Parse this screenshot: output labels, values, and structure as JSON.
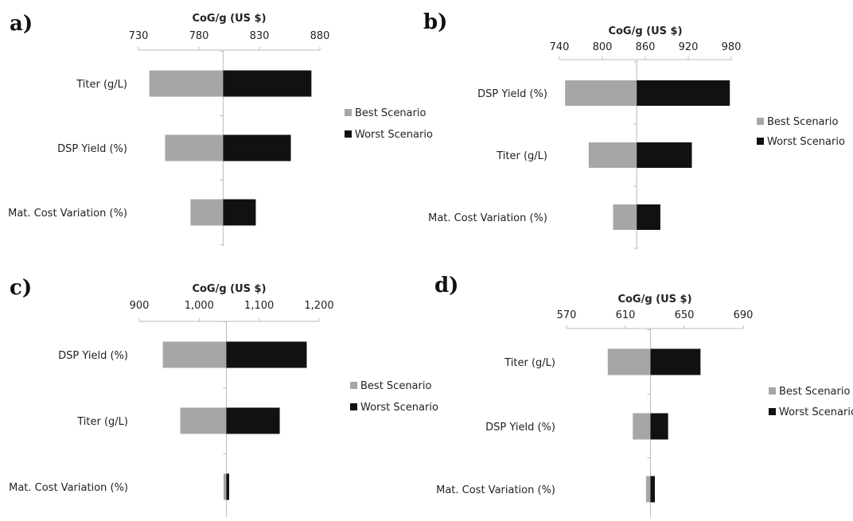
{
  "colors": {
    "best": "#a6a6a6",
    "worst": "#111111",
    "axis": "#bbbbbb"
  },
  "legend": {
    "best": "Best Scenario",
    "worst": "Worst Scenario"
  },
  "chart_data": [
    {
      "panel": "a)",
      "type": "bar",
      "orientation": "horizontal-tornado",
      "xlabel": "CoG/g (US $)",
      "ticks": [
        "730",
        "780",
        "830",
        "880"
      ],
      "xlim": [
        730,
        880
      ],
      "base": 800,
      "categories": [
        "Titer (g/L)",
        "DSP Yield (%)",
        "Mat. Cost Variation (%)"
      ],
      "series": [
        {
          "name": "Best Scenario",
          "values": [
            739,
            752,
            773
          ]
        },
        {
          "name": "Worst Scenario",
          "values": [
            873,
            856,
            827
          ]
        }
      ],
      "legend": "right"
    },
    {
      "panel": "b)",
      "type": "bar",
      "orientation": "horizontal-tornado",
      "xlabel": "CoG/g (US $)",
      "ticks": [
        "740",
        "800",
        "860",
        "920",
        "980"
      ],
      "xlim": [
        740,
        980
      ],
      "base": 848,
      "categories": [
        "DSP Yield (%)",
        "Titer (g/L)",
        "Mat. Cost Variation (%)"
      ],
      "series": [
        {
          "name": "Best Scenario",
          "values": [
            748,
            781,
            815
          ]
        },
        {
          "name": "Worst Scenario",
          "values": [
            978,
            925,
            881
          ]
        }
      ],
      "legend": "right"
    },
    {
      "panel": "c)",
      "type": "bar",
      "orientation": "horizontal-tornado",
      "xlabel": "CoG/g (US $)",
      "ticks": [
        "900",
        "1,000",
        "1,100",
        "1,200"
      ],
      "xlim": [
        900,
        1220
      ],
      "base": 1055,
      "categories": [
        "DSP Yield (%)",
        "Titer (g/L)",
        "Mat. Cost Variation (%)"
      ],
      "series": [
        {
          "name": "Best Scenario",
          "values": [
            942,
            973,
            1050
          ]
        },
        {
          "name": "Worst Scenario",
          "values": [
            1198,
            1150,
            1060
          ]
        }
      ],
      "legend": "right"
    },
    {
      "panel": "d)",
      "type": "bar",
      "orientation": "horizontal-tornado",
      "xlabel": "CoG/g (US $)",
      "ticks": [
        "570",
        "610",
        "650",
        "690"
      ],
      "xlim": [
        570,
        690
      ],
      "base": 627,
      "categories": [
        "Titer (g/L)",
        "DSP Yield (%)",
        "Mat. Cost Variation (%)"
      ],
      "series": [
        {
          "name": "Best Scenario",
          "values": [
            598,
            615,
            624
          ]
        },
        {
          "name": "Worst Scenario",
          "values": [
            661,
            639,
            630
          ]
        }
      ],
      "legend": "right"
    }
  ]
}
